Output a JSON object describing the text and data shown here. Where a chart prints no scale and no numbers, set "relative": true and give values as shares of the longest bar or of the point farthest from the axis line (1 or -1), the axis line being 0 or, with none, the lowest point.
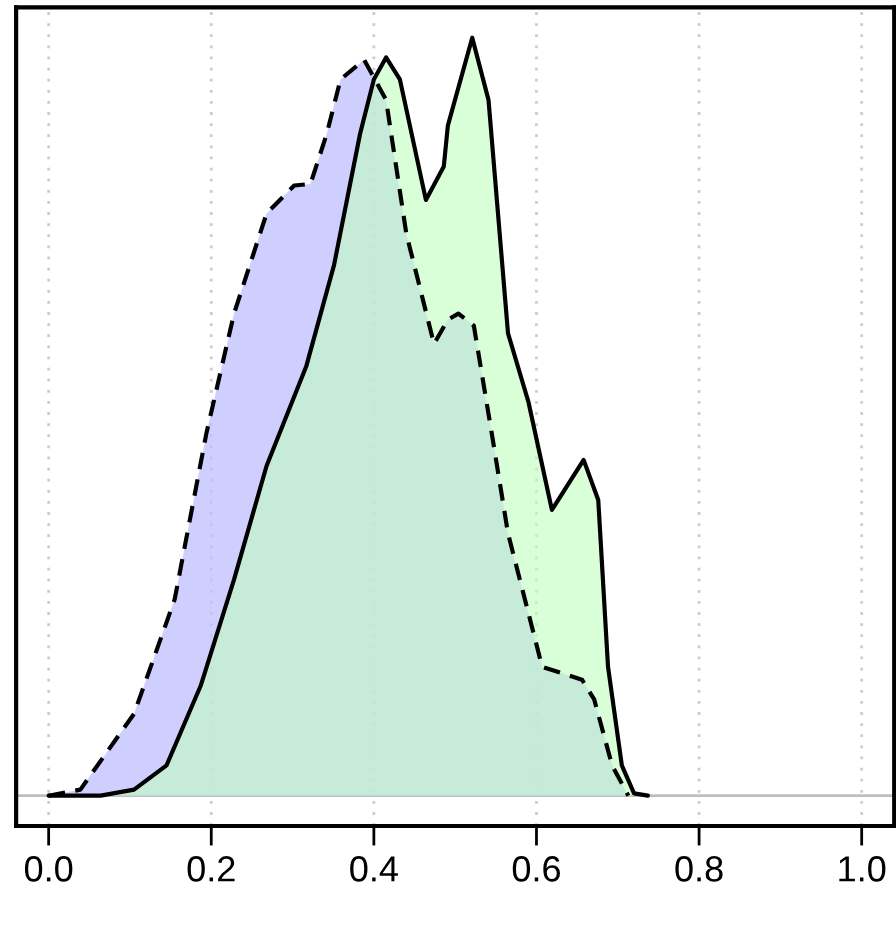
{
  "chart_data": {
    "type": "area",
    "relative": true,
    "xlim": [
      -0.04,
      1.04
    ],
    "xticks": [
      {
        "value": 0,
        "label": "0.0"
      },
      0.2,
      0.4,
      0.6,
      0.8,
      {
        "value": 1,
        "label": "1.0"
      }
    ],
    "grid": "x",
    "legend": false,
    "ref_lines": [
      {
        "axis": "y",
        "value": 0,
        "color": "#bebebe"
      }
    ],
    "series": [
      {
        "color": "#bfbfff",
        "line_style": "dashed",
        "x": [
          0.0,
          0.039,
          0.105,
          0.155,
          0.194,
          0.228,
          0.268,
          0.302,
          0.322,
          0.342,
          0.359,
          0.388,
          0.415,
          0.44,
          0.474,
          0.491,
          0.504,
          0.523,
          0.545,
          0.565,
          0.607,
          0.656,
          0.671,
          0.693,
          0.713
        ],
        "values": [
          0,
          0.008,
          0.108,
          0.259,
          0.478,
          0.636,
          0.768,
          0.805,
          0.807,
          0.873,
          0.945,
          0.971,
          0.918,
          0.741,
          0.596,
          0.628,
          0.636,
          0.62,
          0.478,
          0.346,
          0.17,
          0.153,
          0.127,
          0.04,
          0
        ]
      },
      {
        "color": "#bfffbf",
        "line_style": "solid",
        "x": [
          0.0,
          0.064,
          0.105,
          0.145,
          0.187,
          0.228,
          0.268,
          0.317,
          0.351,
          0.383,
          0.4,
          0.415,
          0.432,
          0.464,
          0.486,
          0.491,
          0.521,
          0.541,
          0.565,
          0.59,
          0.619,
          0.658,
          0.676,
          0.688,
          0.705,
          0.72,
          0.737
        ],
        "values": [
          0,
          0,
          0.008,
          0.04,
          0.145,
          0.285,
          0.435,
          0.567,
          0.7,
          0.873,
          0.945,
          0.974,
          0.945,
          0.786,
          0.83,
          0.884,
          1.0,
          0.918,
          0.61,
          0.52,
          0.377,
          0.443,
          0.39,
          0.17,
          0.04,
          0.003,
          0
        ]
      }
    ]
  }
}
